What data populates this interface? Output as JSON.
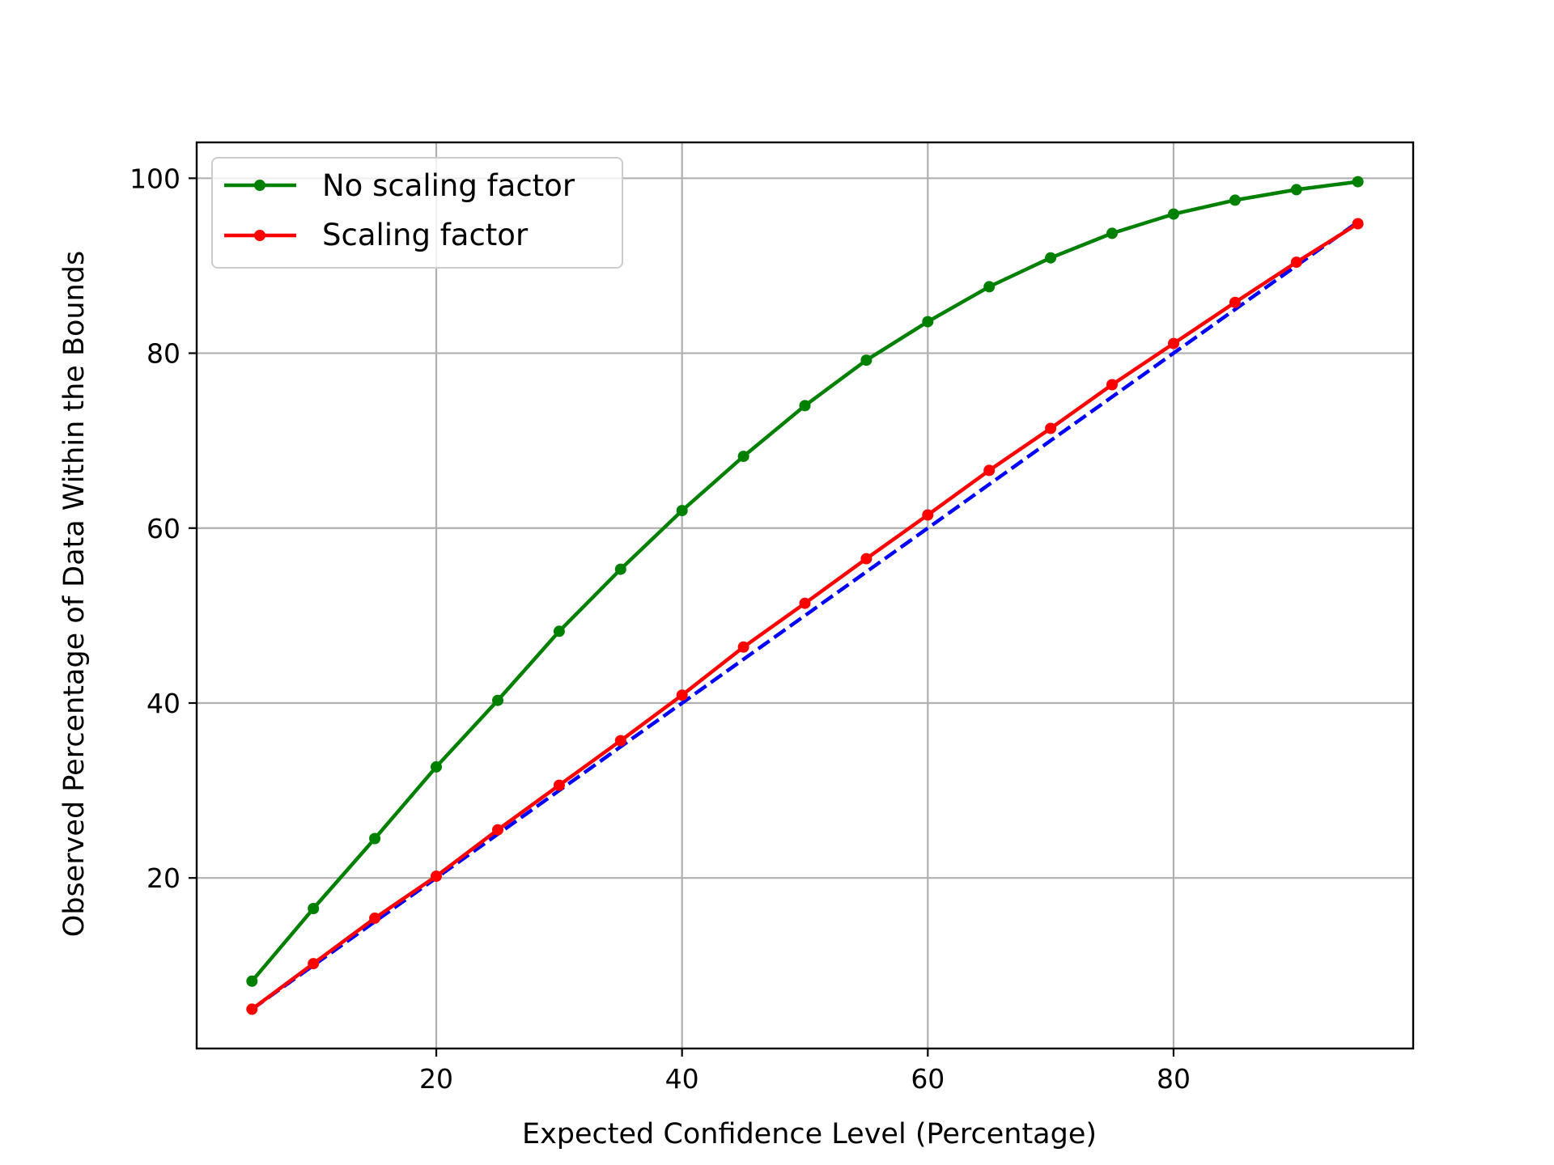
{
  "chart_data": {
    "type": "line",
    "title": "",
    "xlabel": "Expected Confidence Level (Percentage)",
    "ylabel": "Observed Percentage of Data Within the Bounds",
    "xlim": [
      0.5,
      99.5
    ],
    "ylim": [
      0.5,
      104.1
    ],
    "xticks": [
      20,
      40,
      60,
      80
    ],
    "yticks": [
      20,
      40,
      60,
      80,
      100
    ],
    "grid": true,
    "legend_position": "upper-left",
    "x": [
      5,
      10,
      15,
      20,
      25,
      30,
      35,
      40,
      45,
      50,
      55,
      60,
      65,
      70,
      75,
      80,
      85,
      90,
      95
    ],
    "series": [
      {
        "name": "No scaling factor",
        "color": "#008000",
        "style": "solid",
        "marker": "circle",
        "values": [
          8.2,
          16.5,
          24.5,
          32.7,
          40.3,
          48.2,
          55.3,
          62.0,
          68.2,
          74.0,
          79.2,
          83.6,
          87.6,
          90.9,
          93.7,
          95.9,
          97.5,
          98.7,
          99.6
        ]
      },
      {
        "name": "Scaling factor",
        "color": "#ff0000",
        "style": "solid",
        "marker": "circle",
        "values": [
          5.0,
          10.2,
          15.4,
          20.2,
          25.5,
          30.6,
          35.7,
          40.9,
          46.4,
          51.4,
          56.5,
          61.5,
          66.6,
          71.4,
          76.4,
          81.1,
          85.8,
          90.4,
          94.8
        ]
      },
      {
        "name": "",
        "color": "#0000ff",
        "style": "dashed",
        "marker": "none",
        "values": [
          5,
          10,
          15,
          20,
          25,
          30,
          35,
          40,
          45,
          50,
          55,
          60,
          65,
          70,
          75,
          80,
          85,
          90,
          95
        ]
      }
    ]
  }
}
